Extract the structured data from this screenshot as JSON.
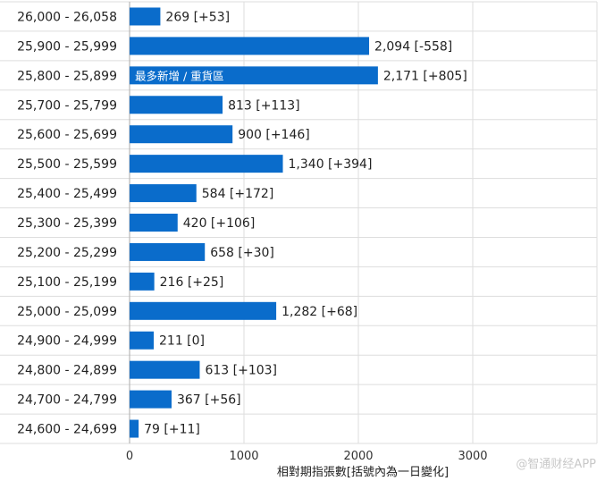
{
  "chart_data": {
    "type": "bar",
    "orientation": "horizontal",
    "categories": [
      "26,000 - 26,058",
      "25,900 - 25,999",
      "25,800 - 25,899",
      "25,700 - 25,799",
      "25,600 - 25,699",
      "25,500 - 25,599",
      "25,400 - 25,499",
      "25,300 - 25,399",
      "25,200 - 25,299",
      "25,100 - 25,199",
      "25,000 - 25,099",
      "24,900 - 24,999",
      "24,800 - 24,899",
      "24,700 - 24,799",
      "24,600 - 24,699"
    ],
    "values": [
      269,
      2094,
      2171,
      813,
      900,
      1340,
      584,
      420,
      658,
      216,
      1282,
      211,
      613,
      367,
      79
    ],
    "changes": [
      "+53",
      "-558",
      "+805",
      "+113",
      "+146",
      "+394",
      "+172",
      "+106",
      "+30",
      "+25",
      "+68",
      "0",
      "+103",
      "+56",
      "+11"
    ],
    "value_labels": [
      "269 [+53]",
      "2,094 [-558]",
      "2,171 [+805]",
      "813 [+113]",
      "900 [+146]",
      "1,340 [+394]",
      "584 [+172]",
      "420 [+106]",
      "658 [+30]",
      "216 [+25]",
      "1,282 [+68]",
      "211 [0]",
      "613 [+103]",
      "367 [+56]",
      "79 [+11]"
    ],
    "annotation": {
      "category_index": 2,
      "text": "最多新增 / 重貨區"
    },
    "xlabel": "相對期指張數[括號內為一日變化]",
    "xlim": [
      0,
      4000
    ],
    "xticks": [
      0,
      1000,
      2000,
      3000
    ],
    "xtick_labels": [
      "0",
      "1000",
      "2000",
      "3000"
    ],
    "grid": true,
    "bar_color": "#0a6ccb"
  },
  "watermark": "@智通财经APP"
}
